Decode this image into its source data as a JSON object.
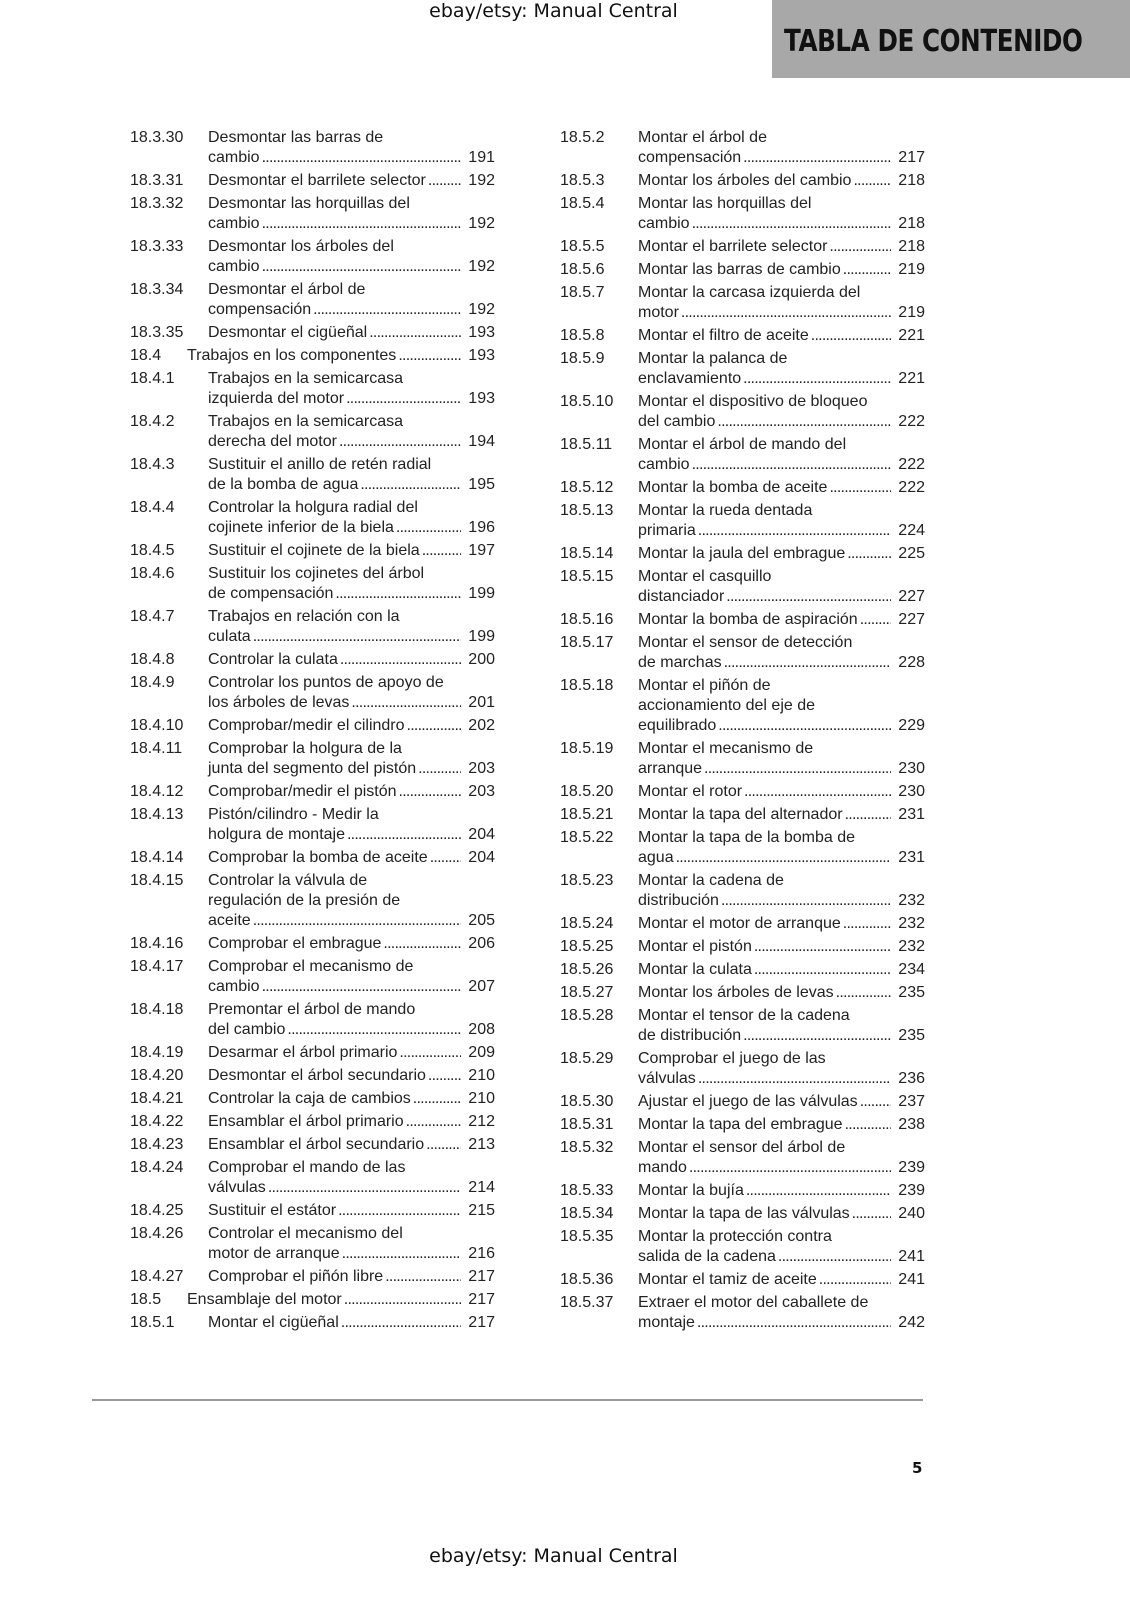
{
  "watermark": "ebay/etsy: Manual Central",
  "header": {
    "title": "TABLA DE CONTENIDO"
  },
  "page_number": "5",
  "columns": [
    [
      {
        "num": "18.3.30",
        "lines": [
          "Desmontar las barras de",
          "cambio"
        ],
        "page": "191"
      },
      {
        "num": "18.3.31",
        "lines": [
          "Desmontar el barrilete selector"
        ],
        "page": "192"
      },
      {
        "num": "18.3.32",
        "lines": [
          "Desmontar las horquillas del",
          "cambio"
        ],
        "page": "192"
      },
      {
        "num": "18.3.33",
        "lines": [
          "Desmontar los árboles del",
          "cambio"
        ],
        "page": "192"
      },
      {
        "num": "18.3.34",
        "lines": [
          "Desmontar el árbol de",
          "compensación"
        ],
        "page": "192"
      },
      {
        "num": "18.3.35",
        "lines": [
          "Desmontar el cigüeñal"
        ],
        "page": "193"
      },
      {
        "num": "18.4",
        "lines": [
          "Trabajos en los componentes"
        ],
        "page": "193",
        "level": 2
      },
      {
        "num": "18.4.1",
        "lines": [
          "Trabajos en la semicarcasa",
          "izquierda del motor"
        ],
        "page": "193"
      },
      {
        "num": "18.4.2",
        "lines": [
          "Trabajos en la semicarcasa",
          "derecha del motor"
        ],
        "page": "194"
      },
      {
        "num": "18.4.3",
        "lines": [
          "Sustituir el anillo de retén radial",
          "de la bomba de agua"
        ],
        "page": "195"
      },
      {
        "num": "18.4.4",
        "lines": [
          "Controlar la holgura radial del",
          "cojinete inferior de la biela"
        ],
        "page": "196"
      },
      {
        "num": "18.4.5",
        "lines": [
          "Sustituir el cojinete de la biela"
        ],
        "page": "197"
      },
      {
        "num": "18.4.6",
        "lines": [
          "Sustituir los cojinetes del árbol",
          "de compensación"
        ],
        "page": "199"
      },
      {
        "num": "18.4.7",
        "lines": [
          "Trabajos en relación con la",
          "culata"
        ],
        "page": "199"
      },
      {
        "num": "18.4.8",
        "lines": [
          "Controlar la culata"
        ],
        "page": "200"
      },
      {
        "num": "18.4.9",
        "lines": [
          "Controlar los puntos de apoyo de",
          "los árboles de levas"
        ],
        "page": "201"
      },
      {
        "num": "18.4.10",
        "lines": [
          "Comprobar/medir el cilindro"
        ],
        "page": "202"
      },
      {
        "num": "18.4.11",
        "lines": [
          "Comprobar la holgura de la",
          "junta del segmento del pistón"
        ],
        "page": "203"
      },
      {
        "num": "18.4.12",
        "lines": [
          "Comprobar/medir el pistón"
        ],
        "page": "203"
      },
      {
        "num": "18.4.13",
        "lines": [
          "Pistón/cilindro - Medir la",
          "holgura de montaje"
        ],
        "page": "204"
      },
      {
        "num": "18.4.14",
        "lines": [
          "Comprobar la bomba de aceite"
        ],
        "page": "204"
      },
      {
        "num": "18.4.15",
        "lines": [
          "Controlar la válvula de",
          "regulación de la presión de",
          "aceite"
        ],
        "page": "205"
      },
      {
        "num": "18.4.16",
        "lines": [
          "Comprobar el embrague"
        ],
        "page": "206"
      },
      {
        "num": "18.4.17",
        "lines": [
          "Comprobar el mecanismo de",
          "cambio"
        ],
        "page": "207"
      },
      {
        "num": "18.4.18",
        "lines": [
          "Premontar el árbol de mando",
          "del cambio"
        ],
        "page": "208"
      },
      {
        "num": "18.4.19",
        "lines": [
          "Desarmar el árbol primario"
        ],
        "page": "209"
      },
      {
        "num": "18.4.20",
        "lines": [
          "Desmontar el árbol secundario"
        ],
        "page": "210"
      },
      {
        "num": "18.4.21",
        "lines": [
          "Controlar la caja de cambios"
        ],
        "page": "210"
      },
      {
        "num": "18.4.22",
        "lines": [
          "Ensamblar el árbol primario"
        ],
        "page": "212"
      },
      {
        "num": "18.4.23",
        "lines": [
          "Ensamblar el árbol secundario"
        ],
        "page": "213"
      },
      {
        "num": "18.4.24",
        "lines": [
          "Comprobar el mando de las",
          "válvulas"
        ],
        "page": "214"
      },
      {
        "num": "18.4.25",
        "lines": [
          "Sustituir el estátor"
        ],
        "page": "215"
      },
      {
        "num": "18.4.26",
        "lines": [
          "Controlar el mecanismo del",
          "motor de arranque"
        ],
        "page": "216"
      },
      {
        "num": "18.4.27",
        "lines": [
          "Comprobar el piñón libre"
        ],
        "page": "217"
      },
      {
        "num": "18.5",
        "lines": [
          "Ensamblaje del motor"
        ],
        "page": "217",
        "level": 2
      },
      {
        "num": "18.5.1",
        "lines": [
          "Montar el cigüeñal"
        ],
        "page": "217"
      }
    ],
    [
      {
        "num": "18.5.2",
        "lines": [
          "Montar el árbol de",
          "compensación"
        ],
        "page": "217"
      },
      {
        "num": "18.5.3",
        "lines": [
          "Montar los árboles del cambio"
        ],
        "page": "218"
      },
      {
        "num": "18.5.4",
        "lines": [
          "Montar las horquillas del",
          "cambio"
        ],
        "page": "218"
      },
      {
        "num": "18.5.5",
        "lines": [
          "Montar el barrilete selector"
        ],
        "page": "218"
      },
      {
        "num": "18.5.6",
        "lines": [
          "Montar las barras de cambio"
        ],
        "page": "219"
      },
      {
        "num": "18.5.7",
        "lines": [
          "Montar la carcasa izquierda del",
          "motor"
        ],
        "page": "219"
      },
      {
        "num": "18.5.8",
        "lines": [
          "Montar el filtro de aceite"
        ],
        "page": "221"
      },
      {
        "num": "18.5.9",
        "lines": [
          "Montar la palanca de",
          "enclavamiento"
        ],
        "page": "221"
      },
      {
        "num": "18.5.10",
        "lines": [
          "Montar el dispositivo de bloqueo",
          "del cambio"
        ],
        "page": "222"
      },
      {
        "num": "18.5.11",
        "lines": [
          "Montar el árbol de mando del",
          "cambio"
        ],
        "page": "222"
      },
      {
        "num": "18.5.12",
        "lines": [
          "Montar la bomba de aceite"
        ],
        "page": "222"
      },
      {
        "num": "18.5.13",
        "lines": [
          "Montar la rueda dentada",
          "primaria"
        ],
        "page": "224"
      },
      {
        "num": "18.5.14",
        "lines": [
          "Montar la jaula del embrague"
        ],
        "page": "225"
      },
      {
        "num": "18.5.15",
        "lines": [
          "Montar el casquillo",
          "distanciador"
        ],
        "page": "227"
      },
      {
        "num": "18.5.16",
        "lines": [
          "Montar la bomba de aspiración"
        ],
        "page": "227"
      },
      {
        "num": "18.5.17",
        "lines": [
          "Montar el sensor de detección",
          "de marchas"
        ],
        "page": "228"
      },
      {
        "num": "18.5.18",
        "lines": [
          "Montar el piñón de",
          "accionamiento del eje de",
          "equilibrado"
        ],
        "page": "229"
      },
      {
        "num": "18.5.19",
        "lines": [
          "Montar el mecanismo de",
          "arranque"
        ],
        "page": "230"
      },
      {
        "num": "18.5.20",
        "lines": [
          "Montar el rotor"
        ],
        "page": "230"
      },
      {
        "num": "18.5.21",
        "lines": [
          "Montar la tapa del alternador"
        ],
        "page": "231"
      },
      {
        "num": "18.5.22",
        "lines": [
          "Montar la tapa de la bomba de",
          "agua"
        ],
        "page": "231"
      },
      {
        "num": "18.5.23",
        "lines": [
          "Montar la cadena de",
          "distribución"
        ],
        "page": "232"
      },
      {
        "num": "18.5.24",
        "lines": [
          "Montar el motor de arranque"
        ],
        "page": "232"
      },
      {
        "num": "18.5.25",
        "lines": [
          "Montar el pistón"
        ],
        "page": "232"
      },
      {
        "num": "18.5.26",
        "lines": [
          "Montar la culata"
        ],
        "page": "234"
      },
      {
        "num": "18.5.27",
        "lines": [
          "Montar los árboles de levas"
        ],
        "page": "235"
      },
      {
        "num": "18.5.28",
        "lines": [
          "Montar el tensor de la cadena",
          "de distribución"
        ],
        "page": "235"
      },
      {
        "num": "18.5.29",
        "lines": [
          "Comprobar el juego de las",
          "válvulas"
        ],
        "page": "236"
      },
      {
        "num": "18.5.30",
        "lines": [
          "Ajustar el juego de las válvulas"
        ],
        "page": "237"
      },
      {
        "num": "18.5.31",
        "lines": [
          "Montar la tapa del embrague"
        ],
        "page": "238"
      },
      {
        "num": "18.5.32",
        "lines": [
          "Montar el sensor del árbol de",
          "mando"
        ],
        "page": "239"
      },
      {
        "num": "18.5.33",
        "lines": [
          "Montar la bujía"
        ],
        "page": "239"
      },
      {
        "num": "18.5.34",
        "lines": [
          "Montar la tapa de las válvulas"
        ],
        "page": "240"
      },
      {
        "num": "18.5.35",
        "lines": [
          "Montar la protección contra",
          "salida de la cadena"
        ],
        "page": "241"
      },
      {
        "num": "18.5.36",
        "lines": [
          "Montar el tamiz de aceite"
        ],
        "page": "241"
      },
      {
        "num": "18.5.37",
        "lines": [
          "Extraer el motor del caballete de",
          "montaje"
        ],
        "page": "242"
      }
    ]
  ]
}
